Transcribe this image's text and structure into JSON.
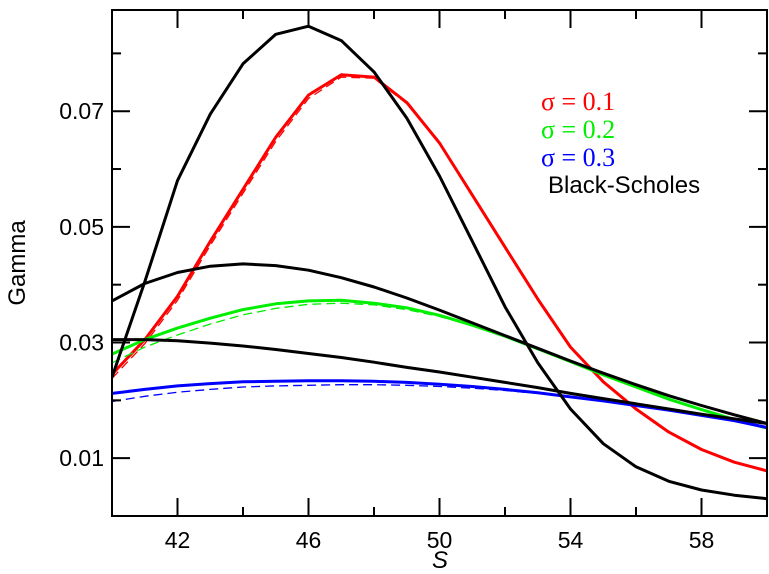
{
  "chart_data": {
    "type": "line",
    "title": "",
    "xlabel": "S",
    "ylabel": "Gamma",
    "xlim": [
      40,
      60
    ],
    "ylim": [
      0,
      0.0875
    ],
    "xticks": [
      42,
      46,
      50,
      54,
      58
    ],
    "xtick_labels": [
      "42",
      "46",
      "50",
      "54",
      "58"
    ],
    "yticks": [
      0.01,
      0.03,
      0.05,
      0.07
    ],
    "ytick_labels": [
      "0.01",
      "0.03",
      "0.05",
      "0.07"
    ],
    "grid": false,
    "legend_position": "top-right",
    "legend": [
      {
        "text": "σ = 0.1",
        "color": "#ff0000"
      },
      {
        "text": "σ = 0.2",
        "color": "#00ee00"
      },
      {
        "text": "σ = 0.3",
        "color": "#0000ff"
      },
      {
        "text": "Black-Scholes",
        "color": "#000000"
      }
    ],
    "series": [
      {
        "name": "σ = 0.1",
        "color": "#ff0000",
        "style": "solid",
        "x": [
          40,
          41,
          42,
          43,
          44,
          45,
          46,
          47,
          48,
          49,
          50,
          51,
          52,
          53,
          54,
          55,
          56,
          57,
          58,
          59,
          60
        ],
        "y": [
          0.0245,
          0.0305,
          0.038,
          0.0475,
          0.0565,
          0.0655,
          0.0728,
          0.0763,
          0.0759,
          0.0715,
          0.0645,
          0.0555,
          0.0465,
          0.0375,
          0.0292,
          0.0232,
          0.0185,
          0.0145,
          0.0115,
          0.0093,
          0.0078
        ]
      },
      {
        "name": "",
        "color": "#ff0000",
        "style": "dashed",
        "x": [
          40,
          41,
          42,
          43,
          44,
          45,
          46,
          47,
          48,
          49,
          50,
          51,
          52,
          53,
          54,
          55,
          56,
          57,
          58,
          59,
          60
        ],
        "y": [
          0.0238,
          0.0298,
          0.0373,
          0.0468,
          0.0558,
          0.0648,
          0.0722,
          0.0759,
          0.0757,
          0.0713,
          0.0644,
          0.0554,
          0.0465,
          0.0375,
          0.0292,
          0.0232,
          0.0185,
          0.0145,
          0.0115,
          0.0093,
          0.0078
        ]
      },
      {
        "name": "σ = 0.2",
        "color": "#00ee00",
        "style": "solid",
        "x": [
          40,
          41,
          42,
          43,
          44,
          45,
          46,
          47,
          48,
          49,
          50,
          51,
          52,
          53,
          54,
          55,
          56,
          57,
          58,
          59,
          60
        ],
        "y": [
          0.028,
          0.0305,
          0.0325,
          0.0342,
          0.0357,
          0.0367,
          0.0372,
          0.0373,
          0.0368,
          0.036,
          0.0347,
          0.033,
          0.0311,
          0.0289,
          0.0267,
          0.0244,
          0.0223,
          0.0202,
          0.0184,
          0.0167,
          0.0152
        ]
      },
      {
        "name": "",
        "color": "#00ee00",
        "style": "dashed",
        "x": [
          40,
          41,
          42,
          43,
          44,
          45,
          46,
          47,
          48,
          49,
          50,
          51,
          52,
          53,
          54,
          55,
          56,
          57,
          58,
          59,
          60
        ],
        "y": [
          0.0265,
          0.0292,
          0.0313,
          0.0332,
          0.0348,
          0.0359,
          0.0366,
          0.0368,
          0.0365,
          0.0357,
          0.0345,
          0.0329,
          0.031,
          0.0289,
          0.0267,
          0.0244,
          0.0223,
          0.0202,
          0.0184,
          0.0167,
          0.0152
        ]
      },
      {
        "name": "σ = 0.3",
        "color": "#0000ff",
        "style": "solid",
        "x": [
          40,
          41,
          42,
          43,
          44,
          45,
          46,
          47,
          48,
          49,
          50,
          51,
          52,
          53,
          54,
          55,
          56,
          57,
          58,
          59,
          60
        ],
        "y": [
          0.0212,
          0.0219,
          0.0225,
          0.0229,
          0.0232,
          0.0233,
          0.0234,
          0.0234,
          0.0233,
          0.0231,
          0.0228,
          0.0224,
          0.0219,
          0.0213,
          0.0206,
          0.0199,
          0.0191,
          0.0183,
          0.0174,
          0.0165,
          0.0153
        ]
      },
      {
        "name": "",
        "color": "#0000ff",
        "style": "dashed",
        "x": [
          40,
          41,
          42,
          43,
          44,
          45,
          46,
          47,
          48,
          49,
          50,
          51,
          52,
          53,
          54,
          55,
          56,
          57,
          58,
          59,
          60
        ],
        "y": [
          0.0198,
          0.0207,
          0.0214,
          0.0219,
          0.0223,
          0.0225,
          0.0226,
          0.0227,
          0.0227,
          0.0226,
          0.0224,
          0.0221,
          0.0217,
          0.0212,
          0.0206,
          0.0199,
          0.0191,
          0.0183,
          0.0174,
          0.0165,
          0.0153
        ]
      },
      {
        "name": "Black-Scholes",
        "color": "#000000",
        "style": "solid",
        "x": [
          40,
          41,
          42,
          43,
          44,
          45,
          46,
          47,
          48,
          49,
          50,
          51,
          52,
          53,
          54,
          55,
          56,
          57,
          58,
          59,
          60
        ],
        "y": [
          0.024,
          0.0405,
          0.058,
          0.0695,
          0.0782,
          0.0833,
          0.0847,
          0.0822,
          0.0768,
          0.0688,
          0.0588,
          0.0475,
          0.0362,
          0.0265,
          0.0185,
          0.0125,
          0.0085,
          0.006,
          0.0045,
          0.0036,
          0.003
        ]
      },
      {
        "name": "",
        "color": "#000000",
        "style": "solid",
        "x": [
          40,
          41,
          42,
          43,
          44,
          45,
          46,
          47,
          48,
          49,
          50,
          51,
          52,
          53,
          54,
          55,
          56,
          57,
          58,
          59,
          60
        ],
        "y": [
          0.0372,
          0.0402,
          0.0421,
          0.0432,
          0.0436,
          0.0433,
          0.0425,
          0.0412,
          0.0396,
          0.0377,
          0.0356,
          0.0334,
          0.0312,
          0.029,
          0.0268,
          0.0247,
          0.0227,
          0.0208,
          0.0191,
          0.0175,
          0.016
        ]
      },
      {
        "name": "",
        "color": "#000000",
        "style": "solid",
        "x": [
          40,
          41,
          42,
          43,
          44,
          45,
          46,
          47,
          48,
          49,
          50,
          51,
          52,
          53,
          54,
          55,
          56,
          57,
          58,
          59,
          60
        ],
        "y": [
          0.0305,
          0.0305,
          0.0303,
          0.0299,
          0.0294,
          0.0288,
          0.0281,
          0.0274,
          0.0266,
          0.0257,
          0.0249,
          0.024,
          0.0231,
          0.0222,
          0.0212,
          0.0203,
          0.0194,
          0.0185,
          0.0176,
          0.0168,
          0.016
        ]
      }
    ]
  }
}
